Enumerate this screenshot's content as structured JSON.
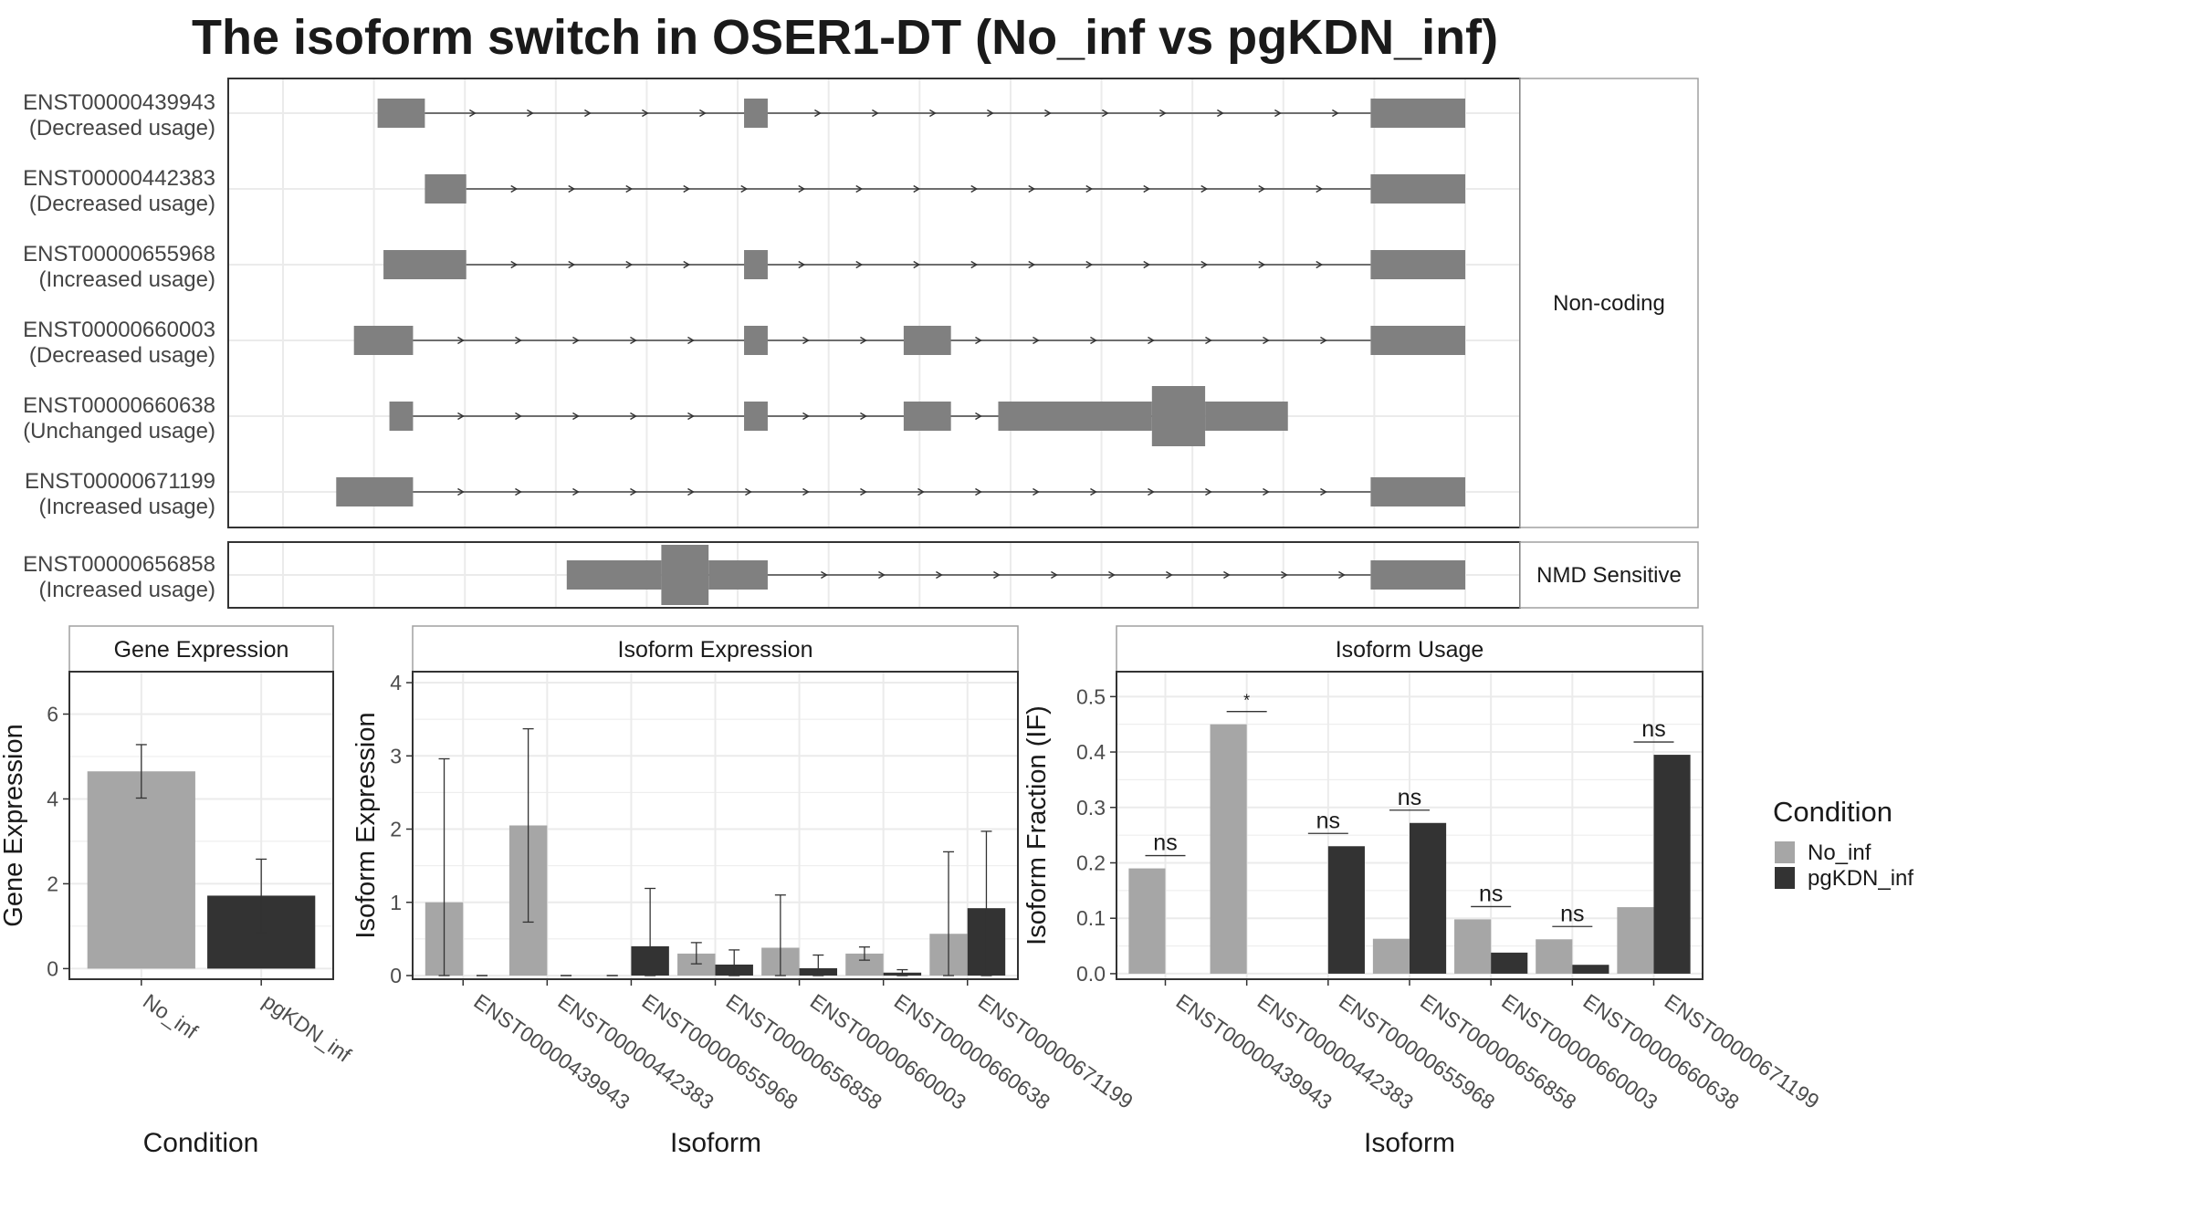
{
  "title": "The isoform switch in OSER1-DT (No_inf vs pgKDN_inf)",
  "colors": {
    "no_inf": "#a6a6a6",
    "pgkdn_inf": "#333333",
    "exon": "#808080",
    "grid": "#ebebeb",
    "border": "#333333",
    "strip_border": "#a0a0a0"
  },
  "structure": {
    "facets": [
      {
        "label": "Non-coding",
        "transcripts": [
          {
            "id": "ENST00000439943",
            "usage": "(Decreased usage)",
            "exons": [
              [
                0.08,
                0.12,
                "nc"
              ],
              [
                0.39,
                0.41,
                "nc"
              ],
              [
                0.92,
                1.0,
                "nc"
              ]
            ]
          },
          {
            "id": "ENST00000442383",
            "usage": "(Decreased usage)",
            "exons": [
              [
                0.12,
                0.155,
                "nc"
              ],
              [
                0.92,
                1.0,
                "nc"
              ]
            ]
          },
          {
            "id": "ENST00000655968",
            "usage": "(Increased usage)",
            "exons": [
              [
                0.085,
                0.155,
                "nc"
              ],
              [
                0.39,
                0.41,
                "nc"
              ],
              [
                0.92,
                1.0,
                "nc"
              ]
            ]
          },
          {
            "id": "ENST00000660003",
            "usage": "(Decreased usage)",
            "exons": [
              [
                0.06,
                0.11,
                "nc"
              ],
              [
                0.39,
                0.41,
                "nc"
              ],
              [
                0.525,
                0.565,
                "nc"
              ],
              [
                0.92,
                1.0,
                "nc"
              ]
            ]
          },
          {
            "id": "ENST00000660638",
            "usage": "(Unchanged usage)",
            "exons": [
              [
                0.09,
                0.11,
                "nc"
              ],
              [
                0.39,
                0.41,
                "nc"
              ],
              [
                0.525,
                0.565,
                "nc"
              ],
              [
                0.605,
                0.735,
                "nc"
              ],
              [
                0.735,
                0.78,
                "cds"
              ],
              [
                0.78,
                0.85,
                "nc"
              ]
            ]
          },
          {
            "id": "ENST00000671199",
            "usage": "(Increased usage)",
            "exons": [
              [
                0.045,
                0.11,
                "nc"
              ],
              [
                0.92,
                1.0,
                "nc"
              ]
            ]
          }
        ]
      },
      {
        "label": "NMD Sensitive",
        "transcripts": [
          {
            "id": "ENST00000656858",
            "usage": "(Increased usage)",
            "exons": [
              [
                0.24,
                0.32,
                "nc"
              ],
              [
                0.32,
                0.36,
                "cds"
              ],
              [
                0.36,
                0.41,
                "nc"
              ],
              [
                0.92,
                1.0,
                "nc"
              ]
            ]
          }
        ]
      }
    ]
  },
  "chart_data": [
    {
      "type": "bar",
      "title": "Gene Expression",
      "xlabel": "Condition",
      "ylabel": "Gene Expression",
      "categories": [
        "No_inf",
        "pgKDN_inf"
      ],
      "values": [
        4.65,
        1.72
      ],
      "error_low": [
        4.02,
        0.85
      ],
      "error_high": [
        5.28,
        2.58
      ],
      "ylim": [
        -0.25,
        7
      ],
      "yticks": [
        0,
        2,
        4,
        6
      ]
    },
    {
      "type": "bar",
      "title": "Isoform Expression",
      "xlabel": "Isoform",
      "ylabel": "Isoform Expression",
      "categories": [
        "ENST00000439943",
        "ENST00000442383",
        "ENST00000655968",
        "ENST00000656858",
        "ENST00000660003",
        "ENST00000660638",
        "ENST00000671199"
      ],
      "series": [
        {
          "name": "No_inf",
          "values": [
            1.0,
            2.05,
            0.0,
            0.3,
            0.38,
            0.3,
            0.57
          ],
          "error_low": [
            0.0,
            0.73,
            0.0,
            0.16,
            0.0,
            0.21,
            0.0
          ],
          "error_high": [
            2.96,
            3.37,
            0.0,
            0.45,
            1.1,
            0.39,
            1.69
          ]
        },
        {
          "name": "pgKDN_inf",
          "values": [
            0.0,
            0.0,
            0.4,
            0.15,
            0.1,
            0.04,
            0.92
          ],
          "error_low": [
            0.0,
            0.0,
            0.0,
            0.0,
            0.0,
            0.0,
            0.0
          ],
          "error_high": [
            0.0,
            0.0,
            1.19,
            0.35,
            0.28,
            0.08,
            1.97
          ]
        }
      ],
      "ylim": [
        -0.05,
        4.15
      ],
      "yticks": [
        0,
        1,
        2,
        3,
        4
      ]
    },
    {
      "type": "bar",
      "title": "Isoform Usage",
      "xlabel": "Isoform",
      "ylabel": "Isoform Fraction (IF)",
      "categories": [
        "ENST00000439943",
        "ENST00000442383",
        "ENST00000655968",
        "ENST00000656858",
        "ENST00000660003",
        "ENST00000660638",
        "ENST00000671199"
      ],
      "series": [
        {
          "name": "No_inf",
          "values": [
            0.19,
            0.45,
            0.0,
            0.063,
            0.098,
            0.062,
            0.12
          ]
        },
        {
          "name": "pgKDN_inf",
          "values": [
            0.0,
            0.0,
            0.23,
            0.272,
            0.038,
            0.016,
            0.395
          ]
        }
      ],
      "significance": [
        "ns",
        "*",
        "ns",
        "ns",
        "ns",
        "ns",
        "ns"
      ],
      "ylim": [
        -0.01,
        0.545
      ],
      "yticks": [
        "0.0",
        "0.1",
        "0.2",
        "0.3",
        "0.4",
        "0.5"
      ]
    }
  ],
  "legend": {
    "title": "Condition",
    "items": [
      "No_inf",
      "pgKDN_inf"
    ],
    "position": "right"
  }
}
